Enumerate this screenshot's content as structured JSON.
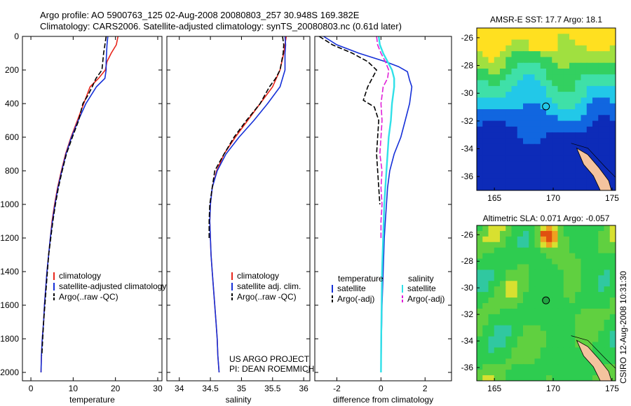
{
  "header": {
    "line1": "Argo profile: AO 5900763_125 02-Aug-2008 20080803_257 30.948S 169.382E",
    "line2": "Climatology: CARS2006. Satellite-adjusted climatology: synTS_20080803.nc (0.61d later)"
  },
  "footer": {
    "project": "US ARGO PROJECT",
    "pi": "PI: DEAN ROEMMICH",
    "csiro": "CSIRO 12-Aug-2008 10:31:30"
  },
  "colors": {
    "climatology": "#e8261c",
    "satellite": "#1530d8",
    "argo": "#000000",
    "satellite_salinity": "#30e0e8",
    "argo_adj_salinity": "#e020d8",
    "frame": "#000000"
  },
  "chart_data": [
    {
      "type": "line",
      "xlabel": "temperature",
      "ylabel": "",
      "xlim": [
        -2,
        31
      ],
      "ylim": [
        2050,
        0
      ],
      "xticks": [
        "0",
        "10",
        "20",
        "30"
      ],
      "yticks": [
        "0",
        "200",
        "400",
        "600",
        "800",
        "1000",
        "1200",
        "1400",
        "1600",
        "1800",
        "2000"
      ],
      "legend": [
        "climatology",
        "satellite-adjusted climatology",
        "Argo(..raw -QC)"
      ],
      "series": [
        {
          "name": "climatology",
          "color_key": "climatology",
          "points": [
            [
              20.6,
              0
            ],
            [
              20.2,
              50
            ],
            [
              19.0,
              100
            ],
            [
              18.0,
              150
            ],
            [
              17.6,
              200
            ],
            [
              16.0,
              250
            ],
            [
              14.0,
              300
            ],
            [
              12.5,
              400
            ],
            [
              11.0,
              500
            ],
            [
              9.5,
              600
            ],
            [
              8.2,
              700
            ],
            [
              7.2,
              800
            ],
            [
              6.3,
              900
            ],
            [
              5.6,
              1000
            ],
            [
              5.0,
              1100
            ],
            [
              4.6,
              1200
            ],
            [
              4.2,
              1300
            ],
            [
              3.8,
              1400
            ],
            [
              3.5,
              1500
            ],
            [
              3.2,
              1600
            ],
            [
              3.0,
              1700
            ],
            [
              2.7,
              1800
            ],
            [
              2.5,
              1900
            ],
            [
              2.4,
              2000
            ]
          ]
        },
        {
          "name": "satellite-adjusted climatology",
          "color_key": "satellite",
          "points": [
            [
              18.2,
              0
            ],
            [
              18.0,
              50
            ],
            [
              17.9,
              100
            ],
            [
              17.8,
              150
            ],
            [
              17.8,
              200
            ],
            [
              17.5,
              250
            ],
            [
              15.5,
              300
            ],
            [
              13.0,
              400
            ],
            [
              11.2,
              500
            ],
            [
              9.6,
              600
            ],
            [
              8.3,
              700
            ],
            [
              7.3,
              800
            ],
            [
              6.4,
              900
            ],
            [
              5.7,
              1000
            ],
            [
              5.1,
              1100
            ],
            [
              4.6,
              1200
            ],
            [
              4.2,
              1300
            ],
            [
              3.8,
              1400
            ],
            [
              3.5,
              1500
            ],
            [
              3.2,
              1600
            ],
            [
              3.0,
              1700
            ],
            [
              2.7,
              1800
            ],
            [
              2.5,
              1900
            ],
            [
              2.4,
              2000
            ]
          ]
        },
        {
          "name": "Argo(..raw -QC)",
          "color_key": "argo",
          "points": [
            [
              17.8,
              0
            ],
            [
              17.5,
              50
            ],
            [
              17.2,
              100
            ],
            [
              17.0,
              150
            ],
            [
              16.8,
              200
            ],
            [
              15.4,
              250
            ],
            [
              14.5,
              300
            ],
            [
              13.5,
              350
            ],
            [
              12.3,
              400
            ],
            [
              11.3,
              500
            ],
            [
              9.8,
              600
            ],
            [
              8.4,
              700
            ],
            [
              7.4,
              800
            ],
            [
              6.5,
              900
            ],
            [
              5.8,
              1000
            ],
            [
              5.2,
              1100
            ],
            [
              4.7,
              1200
            ],
            [
              4.2,
              1300
            ],
            [
              3.9,
              1400
            ],
            [
              3.6,
              1500
            ],
            [
              3.3,
              1600
            ],
            [
              3.0,
              1700
            ],
            [
              2.8,
              1800
            ],
            [
              2.6,
              1900
            ]
          ]
        }
      ]
    },
    {
      "type": "line",
      "xlabel": "salinity",
      "ylabel": "",
      "xlim": [
        33.8,
        36.1
      ],
      "ylim": [
        2050,
        0
      ],
      "xticks": [
        "34",
        "34.5",
        "35",
        "35.5",
        "36"
      ],
      "legend": [
        "climatology",
        "satellite adj. clim.",
        "Argo(..raw -QC)"
      ],
      "series": [
        {
          "name": "climatology",
          "color_key": "climatology",
          "points": [
            [
              35.72,
              0
            ],
            [
              35.7,
              50
            ],
            [
              35.68,
              100
            ],
            [
              35.62,
              200
            ],
            [
              35.5,
              300
            ],
            [
              35.3,
              400
            ],
            [
              35.1,
              500
            ],
            [
              34.9,
              600
            ],
            [
              34.72,
              700
            ],
            [
              34.6,
              800
            ],
            [
              34.53,
              900
            ],
            [
              34.5,
              1000
            ],
            [
              34.49,
              1100
            ],
            [
              34.5,
              1200
            ],
            [
              34.51,
              1300
            ],
            [
              34.53,
              1400
            ],
            [
              34.55,
              1500
            ],
            [
              34.57,
              1600
            ],
            [
              34.59,
              1700
            ],
            [
              34.61,
              1800
            ],
            [
              34.62,
              1900
            ],
            [
              34.64,
              2000
            ]
          ]
        },
        {
          "name": "satellite adj. clim.",
          "color_key": "satellite",
          "points": [
            [
              35.7,
              0
            ],
            [
              35.71,
              50
            ],
            [
              35.7,
              100
            ],
            [
              35.7,
              200
            ],
            [
              35.62,
              300
            ],
            [
              35.42,
              400
            ],
            [
              35.2,
              500
            ],
            [
              34.96,
              600
            ],
            [
              34.75,
              700
            ],
            [
              34.61,
              800
            ],
            [
              34.53,
              900
            ],
            [
              34.5,
              1000
            ],
            [
              34.49,
              1100
            ],
            [
              34.5,
              1200
            ],
            [
              34.51,
              1300
            ],
            [
              34.53,
              1400
            ],
            [
              34.55,
              1500
            ],
            [
              34.57,
              1600
            ],
            [
              34.59,
              1700
            ],
            [
              34.61,
              1800
            ],
            [
              34.62,
              1900
            ],
            [
              34.64,
              2000
            ]
          ]
        },
        {
          "name": "Argo(..raw -QC)",
          "color_key": "argo",
          "points": [
            [
              35.66,
              0
            ],
            [
              35.68,
              50
            ],
            [
              35.67,
              100
            ],
            [
              35.62,
              200
            ],
            [
              35.55,
              250
            ],
            [
              35.45,
              300
            ],
            [
              35.3,
              400
            ],
            [
              35.08,
              500
            ],
            [
              34.88,
              600
            ],
            [
              34.72,
              700
            ],
            [
              34.57,
              800
            ],
            [
              34.53,
              900
            ],
            [
              34.49,
              1000
            ],
            [
              34.48,
              1100
            ],
            [
              34.48,
              1200
            ]
          ]
        }
      ]
    },
    {
      "type": "line",
      "xlabel": "difference from climatology",
      "ylabel": "",
      "xlim": [
        -3,
        3.2
      ],
      "ylim": [
        2050,
        0
      ],
      "xticks": [
        "-2",
        "0",
        "2"
      ],
      "legend_temperature_title": "temperature",
      "legend_salinity_title": "salinity",
      "legend": [
        "satellite",
        "Argo(-adj)",
        "satellite",
        "Argo(-adj)"
      ],
      "series": [
        {
          "name": "satellite",
          "group": "temperature",
          "color_key": "satellite",
          "points": [
            [
              -2.6,
              0
            ],
            [
              -2.0,
              50
            ],
            [
              -1.0,
              100
            ],
            [
              0.2,
              150
            ],
            [
              0.8,
              180
            ],
            [
              1.2,
              210
            ],
            [
              1.3,
              260
            ],
            [
              1.4,
              300
            ],
            [
              1.3,
              400
            ],
            [
              1.1,
              500
            ],
            [
              0.9,
              600
            ],
            [
              0.6,
              700
            ],
            [
              0.4,
              800
            ],
            [
              0.3,
              900
            ],
            [
              0.25,
              1000
            ],
            [
              0.2,
              1100
            ],
            [
              0.15,
              1200
            ],
            [
              0.1,
              1400
            ],
            [
              0.05,
              1600
            ],
            [
              0.02,
              1800
            ],
            [
              0.0,
              2000
            ]
          ]
        },
        {
          "name": "Argo(-adj)",
          "group": "temperature",
          "color_key": "argo",
          "points": [
            [
              -2.8,
              0
            ],
            [
              -2.2,
              50
            ],
            [
              -1.3,
              100
            ],
            [
              -0.6,
              150
            ],
            [
              -0.2,
              200
            ],
            [
              -0.4,
              250
            ],
            [
              -0.6,
              300
            ],
            [
              -0.8,
              380
            ],
            [
              -0.3,
              420
            ],
            [
              -0.1,
              500
            ],
            [
              -0.2,
              700
            ],
            [
              -0.1,
              900
            ],
            [
              -0.05,
              1000
            ]
          ]
        },
        {
          "name": "satellite",
          "group": "salinity",
          "color_key": "satellite_salinity",
          "points": [
            [
              -0.1,
              0
            ],
            [
              -0.05,
              50
            ],
            [
              0.1,
              100
            ],
            [
              0.3,
              150
            ],
            [
              0.5,
              200
            ],
            [
              0.6,
              250
            ],
            [
              0.6,
              300
            ],
            [
              0.5,
              400
            ],
            [
              0.45,
              500
            ],
            [
              0.35,
              600
            ],
            [
              0.3,
              700
            ],
            [
              0.25,
              800
            ],
            [
              0.2,
              900
            ],
            [
              0.15,
              1000
            ],
            [
              0.1,
              1200
            ],
            [
              0.05,
              1400
            ],
            [
              0.03,
              1600
            ],
            [
              0.01,
              1800
            ],
            [
              0.0,
              2000
            ]
          ]
        },
        {
          "name": "Argo(-adj)",
          "group": "salinity",
          "color_key": "argo_adj_salinity",
          "points": [
            [
              -0.2,
              0
            ],
            [
              -0.15,
              50
            ],
            [
              0.0,
              100
            ],
            [
              0.2,
              150
            ],
            [
              0.35,
              200
            ],
            [
              0.3,
              250
            ],
            [
              0.1,
              300
            ],
            [
              0.0,
              400
            ],
            [
              0.05,
              500
            ],
            [
              0.0,
              600
            ],
            [
              -0.05,
              700
            ],
            [
              0.05,
              800
            ],
            [
              0.0,
              900
            ],
            [
              0.05,
              1000
            ],
            [
              0.0,
              1100
            ],
            [
              0.0,
              1200
            ]
          ]
        }
      ]
    },
    {
      "type": "heatmap",
      "title": "AMSR-E SST: 17.7 Argo: 18.1",
      "xlim": [
        163.5,
        175.3
      ],
      "ylim": [
        -37,
        -25.3
      ],
      "xticks": [
        "165",
        "170",
        "175"
      ],
      "yticks": [
        "-26",
        "-28",
        "-30",
        "-32",
        "-34",
        "-36"
      ],
      "marker": [
        169.382,
        -30.948
      ]
    },
    {
      "type": "heatmap",
      "title": "Altimetric SLA: 0.071 Argo: -0.057",
      "xlim": [
        163.5,
        175.3
      ],
      "ylim": [
        -37,
        -25.3
      ],
      "xticks": [
        "165",
        "170",
        "175"
      ],
      "yticks": [
        "-26",
        "-28",
        "-30",
        "-32",
        "-34",
        "-36"
      ],
      "marker": [
        169.382,
        -30.948
      ]
    }
  ]
}
